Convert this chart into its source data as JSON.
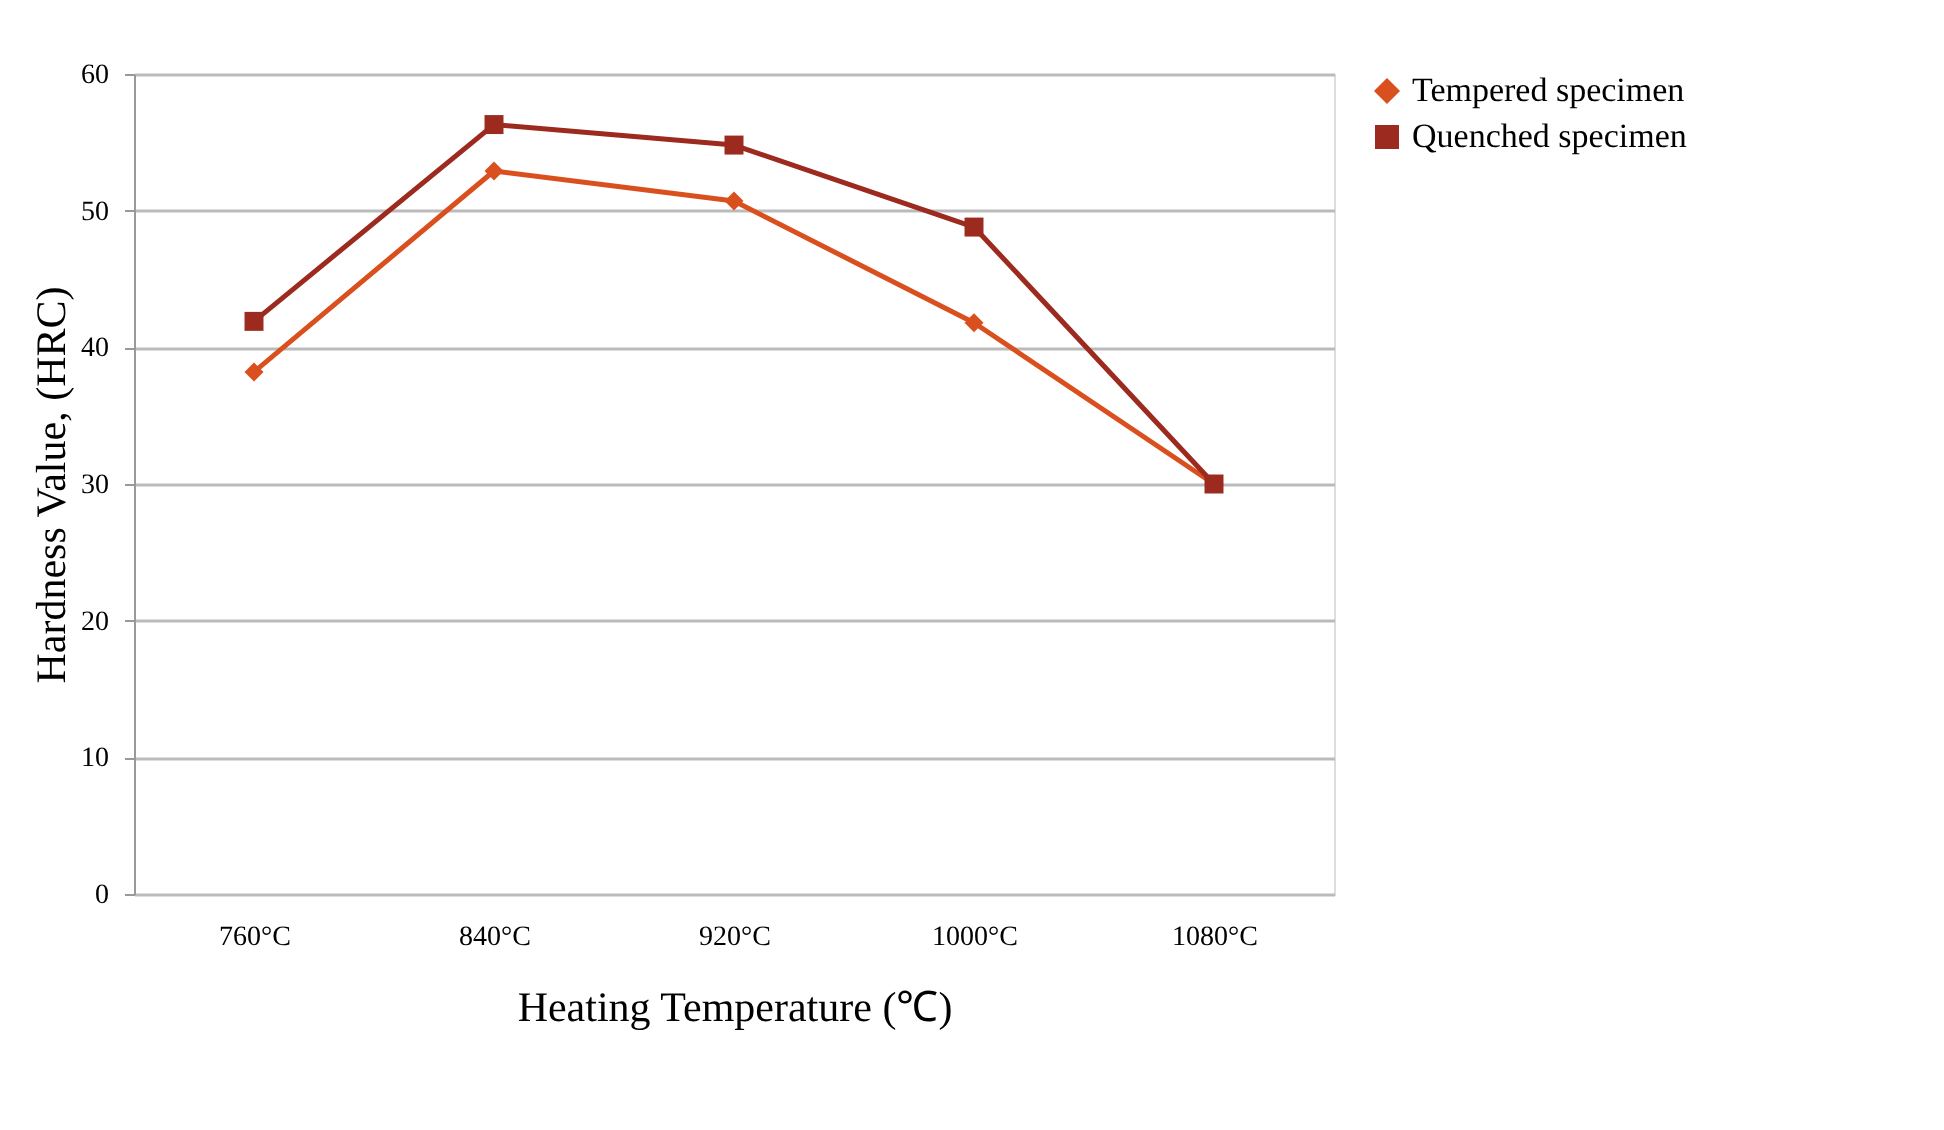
{
  "chart_data": {
    "type": "line",
    "xlabel": "Heating Temperature (℃)",
    "ylabel": "Hardness Value, (HRC)",
    "categories": [
      "760°C",
      "840°C",
      "920°C",
      "1000°C",
      "1080°C"
    ],
    "series": [
      {
        "name": "Tempered specimen",
        "color": "#d9501e",
        "marker": "diamond",
        "values": [
          38.2,
          52.9,
          50.7,
          41.8,
          30.0
        ]
      },
      {
        "name": "Quenched specimen",
        "color": "#9c2a1e",
        "marker": "square",
        "values": [
          41.9,
          56.3,
          54.8,
          48.8,
          30.0
        ]
      }
    ],
    "ylim": [
      0,
      60
    ],
    "yticks": [
      0,
      10,
      20,
      30,
      40,
      50,
      60
    ],
    "grid": "y",
    "legend": "right",
    "line_style": "solid"
  }
}
